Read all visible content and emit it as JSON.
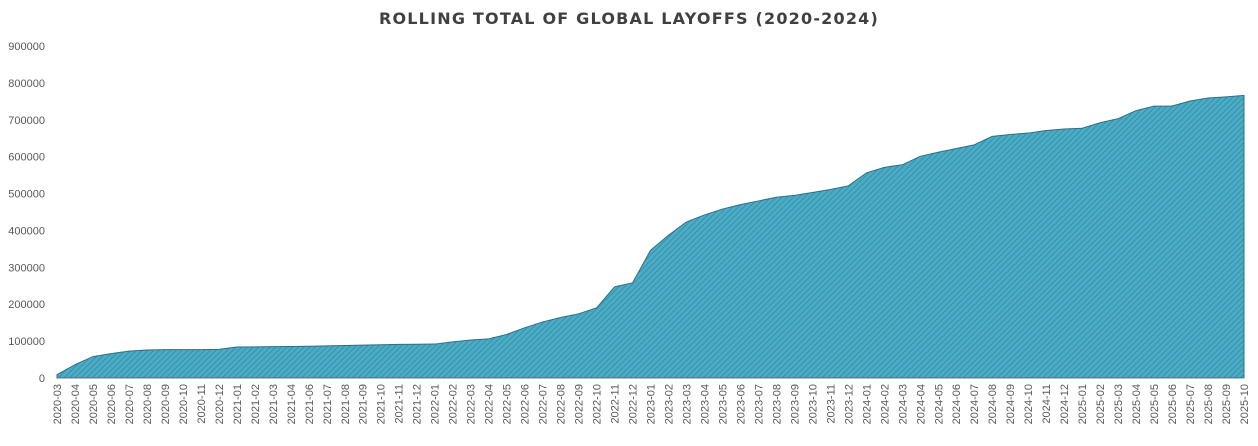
{
  "chart_data": {
    "type": "area",
    "title": "ROLLING TOTAL OF GLOBAL LAYOFFS (2020-2024)",
    "xlabel": "",
    "ylabel": "",
    "ylim": [
      0,
      900000
    ],
    "yticks": [
      0,
      100000,
      200000,
      300000,
      400000,
      500000,
      600000,
      700000,
      800000,
      900000
    ],
    "ytick_labels": [
      "0",
      "100000",
      "200000",
      "300000",
      "400000",
      "500000",
      "600000",
      "700000",
      "800000",
      "900000"
    ],
    "grid": false,
    "legend": "none",
    "fill_color": "#4bacc6",
    "hatch_color": "#31859c",
    "outline_color": "#2e6f85",
    "x": [
      "2020-03",
      "2020-04",
      "2020-05",
      "2020-06",
      "2020-07",
      "2020-08",
      "2020-09",
      "2020-10",
      "2020-11",
      "2020-12",
      "2021-01",
      "2021-02",
      "2021-03",
      "2021-04",
      "2021-06",
      "2021-07",
      "2021-08",
      "2021-09",
      "2021-10",
      "2021-11",
      "2021-12",
      "2022-01",
      "2022-02",
      "2022-03",
      "2022-04",
      "2022-05",
      "2022-06",
      "2022-07",
      "2022-08",
      "2022-09",
      "2022-10",
      "2022-11",
      "2022-12",
      "2023-01",
      "2023-02",
      "2023-03",
      "2023-04",
      "2023-05",
      "2023-06",
      "2023-07",
      "2023-08",
      "2023-09",
      "2023-10",
      "2023-11",
      "2023-12",
      "2024-01",
      "2024-02",
      "2024-03",
      "2024-04",
      "2024-05",
      "2024-06",
      "2024-07",
      "2024-08",
      "2024-09",
      "2024-10",
      "2024-11",
      "2024-12",
      "2025-01",
      "2025-02",
      "2025-03",
      "2025-04",
      "2025-05",
      "2025-06",
      "2025-07",
      "2025-08",
      "2025-09",
      "2025-10"
    ],
    "values": [
      9000,
      36000,
      58000,
      66000,
      73000,
      76000,
      77000,
      77000,
      77000,
      77500,
      84000,
      84500,
      85000,
      85500,
      86000,
      87000,
      88000,
      89000,
      90000,
      91000,
      91500,
      92000,
      98000,
      103000,
      106000,
      118000,
      136000,
      152000,
      164000,
      174000,
      190000,
      247000,
      258000,
      346000,
      387000,
      423000,
      442000,
      458000,
      470000,
      480000,
      490000,
      495000,
      503000,
      511000,
      521000,
      556000,
      571000,
      578000,
      601000,
      612000,
      622000,
      632000,
      655000,
      660000,
      664000,
      671000,
      675000,
      677000,
      692000,
      703000,
      725000,
      737000,
      737500,
      751000,
      759000,
      762000,
      766000
    ]
  }
}
